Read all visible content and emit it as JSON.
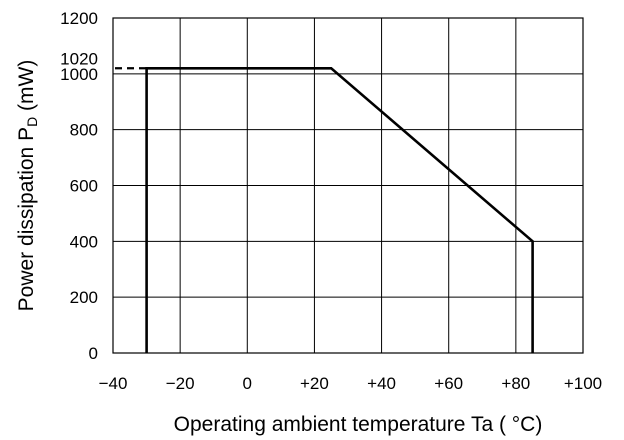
{
  "chart_data": {
    "type": "line",
    "xlabel": "Operating ambient temperature Ta ( °C)",
    "ylabel_main": "Power dissipation P",
    "ylabel_sub": "D",
    "ylabel_unit": " (mW)",
    "xlim": [
      -40,
      100
    ],
    "ylim": [
      0,
      1200
    ],
    "x_ticks": [
      {
        "value": -40,
        "label": "−40"
      },
      {
        "value": -20,
        "label": "−20"
      },
      {
        "value": 0,
        "label": "0"
      },
      {
        "value": 20,
        "label": "+20"
      },
      {
        "value": 40,
        "label": "+40"
      },
      {
        "value": 60,
        "label": "+60"
      },
      {
        "value": 80,
        "label": "+80"
      },
      {
        "value": 100,
        "label": "+100"
      }
    ],
    "y_ticks": [
      {
        "value": 0,
        "label": "0"
      },
      {
        "value": 200,
        "label": "200"
      },
      {
        "value": 400,
        "label": "400"
      },
      {
        "value": 600,
        "label": "600"
      },
      {
        "value": 800,
        "label": "800"
      },
      {
        "value": 1000,
        "label": "1000"
      },
      {
        "value": 1200,
        "label": "1200"
      }
    ],
    "extra_y_tick": {
      "value": 1020,
      "label": "1020"
    },
    "grid": true,
    "series": [
      {
        "style": "solid",
        "x": [
          -30,
          -30,
          25,
          85,
          85
        ],
        "y": [
          0,
          1020,
          1020,
          400,
          0
        ]
      }
    ],
    "reference_line": {
      "style": "dashed",
      "x": [
        -40,
        -30
      ],
      "y": [
        1020,
        1020
      ]
    }
  }
}
